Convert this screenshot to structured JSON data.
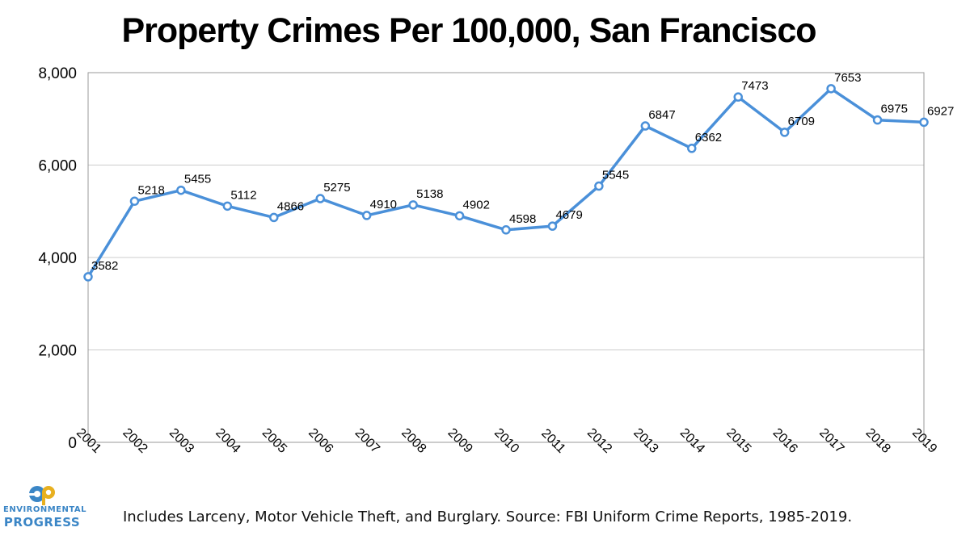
{
  "chart_data": {
    "type": "line",
    "title": "Property Crimes Per 100,000, San Francisco",
    "categories": [
      "2001",
      "2002",
      "2003",
      "2004",
      "2005",
      "2006",
      "2007",
      "2008",
      "2009",
      "2010",
      "2011",
      "2012",
      "2013",
      "2014",
      "2015",
      "2016",
      "2017",
      "2018",
      "2019"
    ],
    "series": [
      {
        "name": "Property Crimes Per 100,000",
        "values": [
          3582,
          5218,
          5455,
          5112,
          4866,
          5275,
          4910,
          5138,
          4902,
          4598,
          4679,
          5545,
          6847,
          6362,
          7473,
          6709,
          7653,
          6975,
          6927
        ]
      }
    ],
    "yticks": [
      "0",
      "2,000",
      "4,000",
      "6,000",
      "8,000"
    ],
    "ylim": [
      0,
      8000
    ],
    "grid": true,
    "colors": {
      "line": "#4a90d9",
      "grid": "#cccccc",
      "axis": "#999999"
    }
  },
  "footer": {
    "source": "Includes Larceny, Motor Vehicle Theft, and Burglary. Source: FBI Uniform Crime Reports, 1985-2019."
  },
  "logo": {
    "line1": "ENVIRONMENTAL",
    "line2": "PROGRESS",
    "icon": "ep-logo-icon",
    "colors": {
      "primary": "#3b86c6",
      "accent": "#e8b020"
    }
  }
}
